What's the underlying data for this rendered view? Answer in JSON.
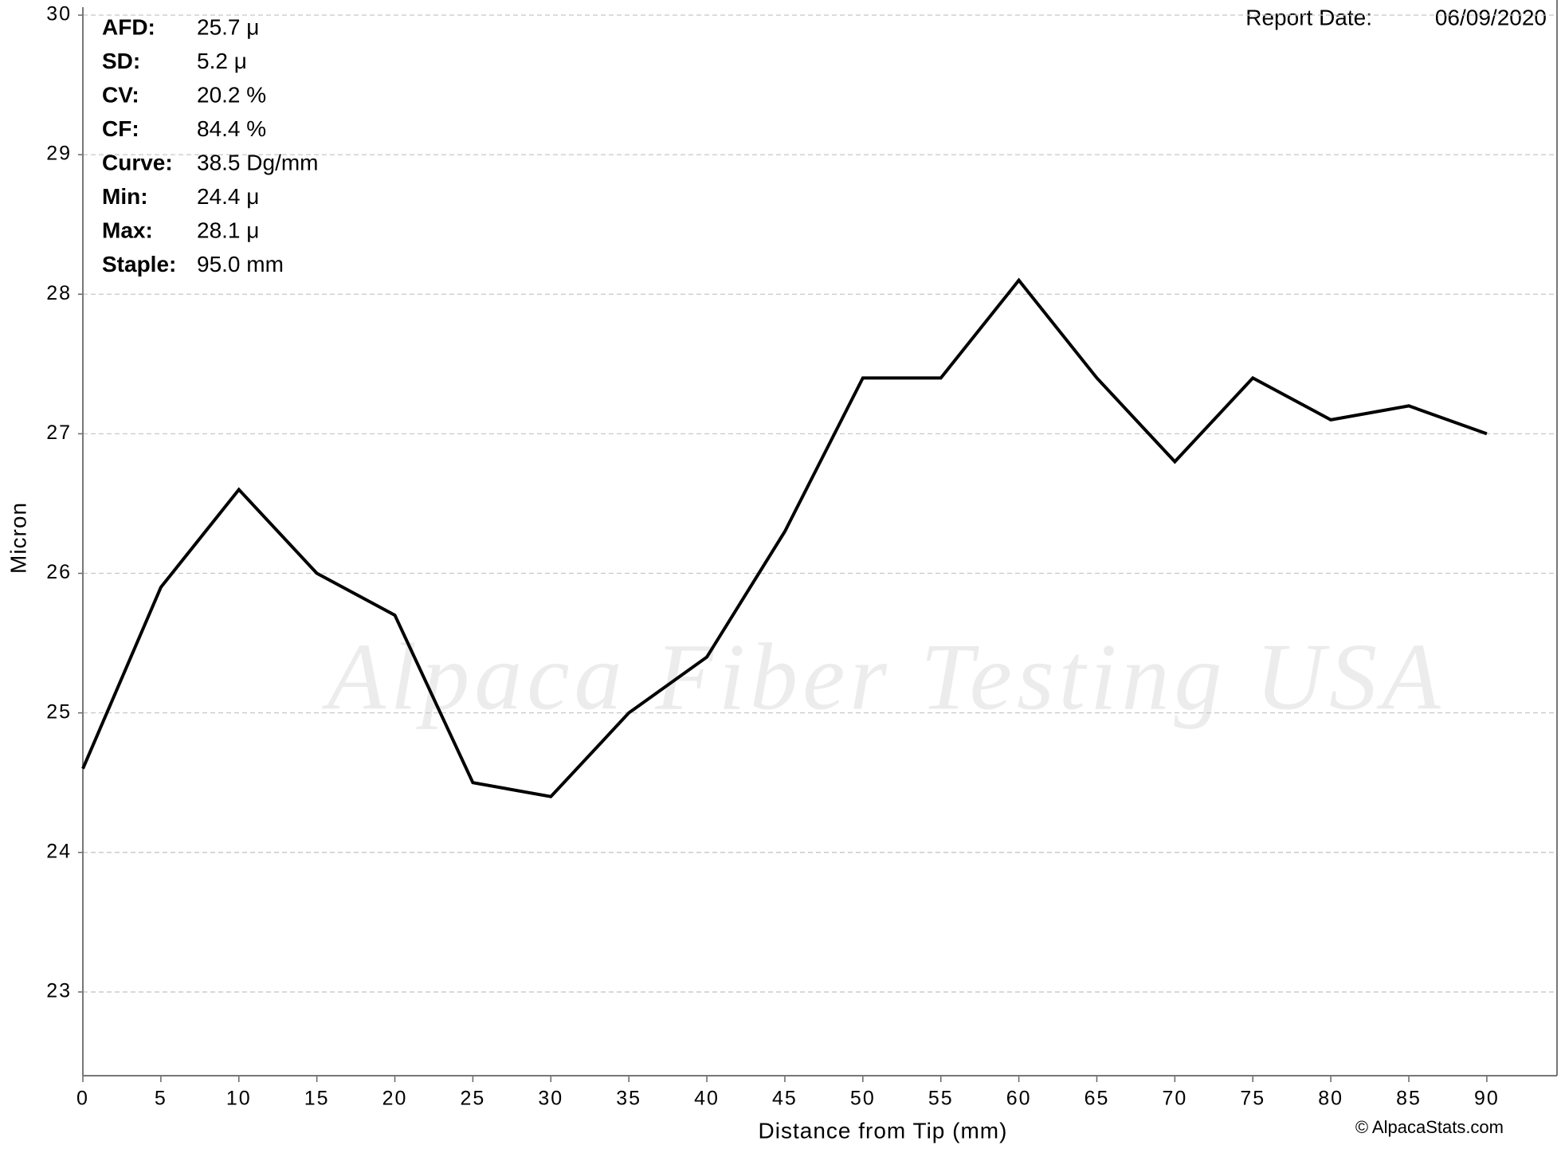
{
  "chart_data": {
    "type": "line",
    "x": [
      0,
      5,
      10,
      15,
      20,
      25,
      30,
      35,
      40,
      45,
      50,
      55,
      60,
      65,
      70,
      75,
      80,
      85,
      90
    ],
    "series": [
      {
        "color": "#000000",
        "values": [
          24.6,
          25.9,
          26.6,
          26.0,
          25.7,
          24.5,
          24.4,
          25.0,
          25.4,
          26.3,
          27.4,
          27.4,
          28.1,
          27.4,
          26.8,
          27.4,
          27.1,
          27.2,
          27.0
        ]
      }
    ],
    "xlim": [
      0,
      94.5
    ],
    "xticks": [
      0,
      5,
      10,
      15,
      20,
      25,
      30,
      35,
      40,
      45,
      50,
      55,
      60,
      65,
      70,
      75,
      80,
      85,
      90
    ],
    "ylim": [
      22.4,
      30
    ],
    "yticks": [
      23,
      24,
      25,
      26,
      27,
      28,
      29,
      30
    ],
    "grid": true,
    "xlabel": "Distance from Tip (mm)",
    "ylabel": "Micron",
    "stats": [
      {
        "label": "AFD:",
        "value": "25.7 μ"
      },
      {
        "label": "SD:",
        "value": "5.2 μ"
      },
      {
        "label": "CV:",
        "value": "20.2 %"
      },
      {
        "label": "CF:",
        "value": "84.4 %"
      },
      {
        "label": "Curve:",
        "value": "38.5 Dg/mm"
      },
      {
        "label": "Min:",
        "value": "24.4 μ"
      },
      {
        "label": "Max:",
        "value": "28.1 μ"
      },
      {
        "label": "Staple:",
        "value": "95.0 mm"
      }
    ],
    "report_date_label": "Report Date:",
    "report_date": "06/09/2020",
    "watermark": "Alpaca Fiber Testing USA",
    "copyright": "© AlpacaStats.com"
  }
}
